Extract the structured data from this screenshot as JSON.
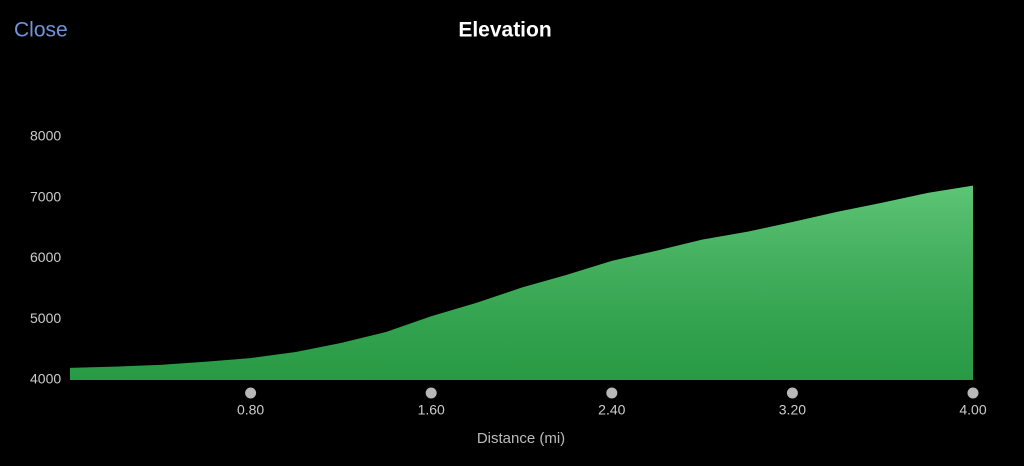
{
  "header": {
    "close": "Close"
  },
  "chart_data": {
    "type": "area",
    "title": "Elevation",
    "x_label": "Distance (mi)",
    "x": [
      0,
      0.2,
      0.4,
      0.6,
      0.8,
      1.0,
      1.2,
      1.4,
      1.6,
      1.8,
      2.0,
      2.2,
      2.4,
      2.6,
      2.8,
      3.0,
      3.2,
      3.4,
      3.6,
      3.8,
      4.0
    ],
    "values": [
      4200,
      4220,
      4250,
      4300,
      4360,
      4460,
      4610,
      4790,
      5050,
      5270,
      5520,
      5730,
      5960,
      6130,
      6310,
      6440,
      6600,
      6770,
      6920,
      7080,
      7200
    ],
    "color": "#2fb550",
    "xlim": [
      0,
      4
    ],
    "xticks": [
      {
        "value": 0.8,
        "label": "0.80"
      },
      {
        "value": 1.6,
        "label": "1.60"
      },
      {
        "value": 2.4,
        "label": "2.40"
      },
      {
        "value": 3.2,
        "label": "3.20"
      },
      {
        "value": 4.0,
        "label": "4.00"
      }
    ],
    "ylim": [
      4000,
      8000
    ],
    "yticks": [
      4000,
      5000,
      6000,
      7000,
      8000
    ],
    "grid": false
  }
}
